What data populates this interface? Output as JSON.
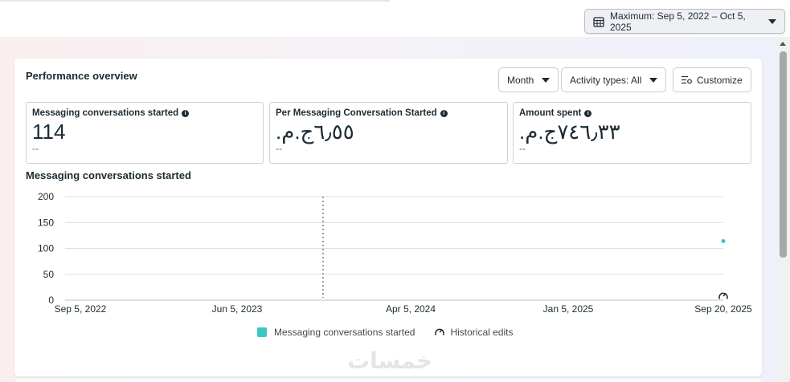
{
  "date_range": {
    "label": "Maximum: Sep 5, 2022 – Oct 5, 2025",
    "icon": "calendar-icon"
  },
  "overview": {
    "title": "Performance overview",
    "controls": {
      "period": "Month",
      "activity": "Activity types: All",
      "customize": "Customize"
    },
    "metrics": [
      {
        "label": "Messaging conversations started",
        "value": "114",
        "comparison": "--"
      },
      {
        "label": "Per Messaging Conversation Started",
        "value": "٦٫٥٥ج.م.‏",
        "comparison": "--"
      },
      {
        "label": "Amount spent",
        "value": "٧٤٦٫٣٣ج.م.‏",
        "comparison": "--"
      }
    ]
  },
  "chart_title": "Messaging conversations started",
  "chart_data": {
    "type": "scatter",
    "title": "Messaging conversations started",
    "x_tick_labels": [
      "Sep 5, 2022",
      "Jun 5, 2023",
      "Apr 5, 2024",
      "Jan 5, 2025",
      "Sep 20, 2025"
    ],
    "y_ticks": [
      0,
      50,
      100,
      150,
      200
    ],
    "ylim": [
      0,
      200
    ],
    "grid": true,
    "series": [
      {
        "name": "Messaging conversations started",
        "color": "#3ac7c2",
        "points": [
          {
            "x": "Sep 20, 2025",
            "y": 114
          }
        ]
      }
    ],
    "marker_date": "Nov 2023",
    "historical_edit_at": "Sep 20, 2025"
  },
  "legend": {
    "series_label": "Messaging conversations started",
    "historical_label": "Historical edits"
  },
  "watermark": "خمسات",
  "colors": {
    "series": "#3ac7c2",
    "grid": "#dadde1",
    "axis": "#1c2b33"
  }
}
